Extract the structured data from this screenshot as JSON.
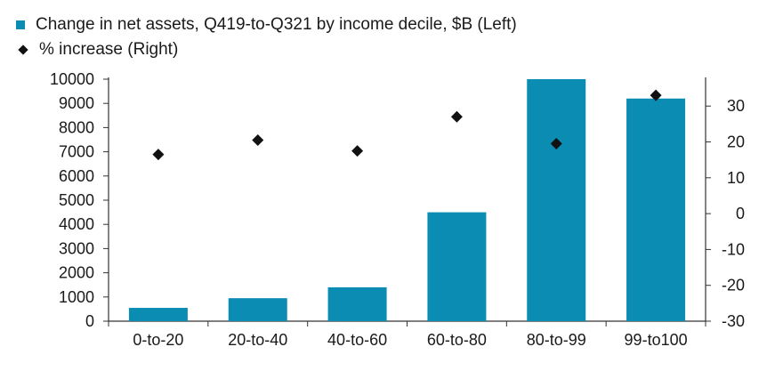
{
  "colors": {
    "bar": "#0b8db3",
    "marker": "#111111",
    "axis": "#333333"
  },
  "chart_data": {
    "type": "bar",
    "categories": [
      "0-to-20",
      "20-to-40",
      "40-to-60",
      "60-to-80",
      "80-to-99",
      "99-to100"
    ],
    "series": [
      {
        "name": "Change in net assets, Q419-to-Q321 by income decile, $B (Left)",
        "axis": "left",
        "kind": "bar",
        "values": [
          550,
          950,
          1400,
          4500,
          10000,
          9200
        ]
      },
      {
        "name": "% increase (Right)",
        "axis": "right",
        "kind": "scatter",
        "values": [
          16.5,
          20.5,
          17.5,
          27,
          19.5,
          33
        ]
      }
    ],
    "left_axis": {
      "ylim": [
        0,
        10000
      ],
      "ticks": [
        "0",
        "1000",
        "2000",
        "3000",
        "4000",
        "5000",
        "6000",
        "7000",
        "8000",
        "9000",
        "10000"
      ]
    },
    "right_axis": {
      "ylim": [
        -30,
        37.5
      ],
      "ticks": [
        "-30",
        "-20",
        "-10",
        "0",
        "10",
        "20",
        "30"
      ]
    },
    "legend_position": "top-left",
    "grid": false
  }
}
